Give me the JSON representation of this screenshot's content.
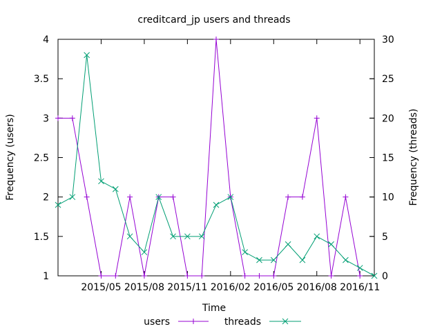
{
  "chart_data": {
    "type": "line",
    "title": "creditcard_jp users and threads",
    "xlabel": "Time",
    "ylabel": "Frequency (users)",
    "y2label": "Frequency (threads)",
    "x_ticks": [
      "2015/05",
      "2015/08",
      "2015/11",
      "2016/02",
      "2016/05",
      "2016/08",
      "2016/11"
    ],
    "y_ticks": [
      "1",
      "1.5",
      "2",
      "2.5",
      "3",
      "3.5",
      "4"
    ],
    "y2_ticks": [
      "0",
      "5",
      "10",
      "15",
      "20",
      "25",
      "30"
    ],
    "ylim": [
      1,
      4
    ],
    "y2lim": [
      0,
      30
    ],
    "x": [
      "2015/02",
      "2015/03",
      "2015/04",
      "2015/05",
      "2015/06",
      "2015/07",
      "2015/08",
      "2015/09",
      "2015/10",
      "2015/11",
      "2015/12",
      "2016/01",
      "2016/02",
      "2016/03",
      "2016/04",
      "2016/05",
      "2016/06",
      "2016/07",
      "2016/08",
      "2016/09",
      "2016/10",
      "2016/11",
      "2016/12"
    ],
    "grid": false,
    "legend_position": "bottom",
    "series": [
      {
        "name": "users",
        "axis": "left",
        "color": "#9400d3",
        "marker": "plus",
        "values": [
          3,
          3,
          2,
          1,
          1,
          2,
          1,
          2,
          2,
          1,
          1,
          4,
          2,
          1,
          1,
          1,
          2,
          2,
          3,
          1,
          2,
          1,
          null
        ]
      },
      {
        "name": "threads",
        "axis": "right",
        "color": "#009e73",
        "marker": "cross",
        "values": [
          9,
          10,
          28,
          12,
          11,
          5,
          3,
          10,
          5,
          5,
          5,
          9,
          10,
          3,
          2,
          2,
          4,
          2,
          5,
          4,
          2,
          1,
          0
        ]
      }
    ]
  }
}
